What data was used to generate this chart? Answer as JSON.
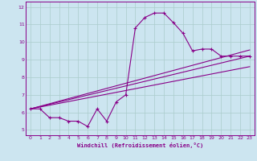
{
  "xlabel": "Windchill (Refroidissement éolien,°C)",
  "bg_color": "#cce5f0",
  "line_color": "#880088",
  "grid_color": "#aacccc",
  "xlim": [
    -0.5,
    23.5
  ],
  "ylim": [
    4.7,
    12.3
  ],
  "xticks": [
    0,
    1,
    2,
    3,
    4,
    5,
    6,
    7,
    8,
    9,
    10,
    11,
    12,
    13,
    14,
    15,
    16,
    17,
    18,
    19,
    20,
    21,
    22,
    23
  ],
  "yticks": [
    5,
    6,
    7,
    8,
    9,
    10,
    11,
    12
  ],
  "curve1_x": [
    0,
    1,
    2,
    3,
    4,
    5,
    6,
    7,
    8,
    9,
    10,
    11,
    12,
    13,
    14,
    15,
    16,
    17,
    18,
    19,
    20,
    21,
    22,
    23
  ],
  "curve1_y": [
    6.2,
    6.2,
    5.7,
    5.7,
    5.5,
    5.5,
    5.2,
    6.2,
    5.5,
    6.6,
    7.0,
    10.8,
    11.4,
    11.65,
    11.65,
    11.1,
    10.5,
    9.5,
    9.6,
    9.6,
    9.2,
    9.2,
    9.2,
    9.2
  ],
  "line1_x": [
    0,
    23
  ],
  "line1_y": [
    6.2,
    9.2
  ],
  "line2_x": [
    0,
    23
  ],
  "line2_y": [
    6.2,
    8.6
  ],
  "line3_x": [
    0,
    23
  ],
  "line3_y": [
    6.2,
    9.55
  ]
}
